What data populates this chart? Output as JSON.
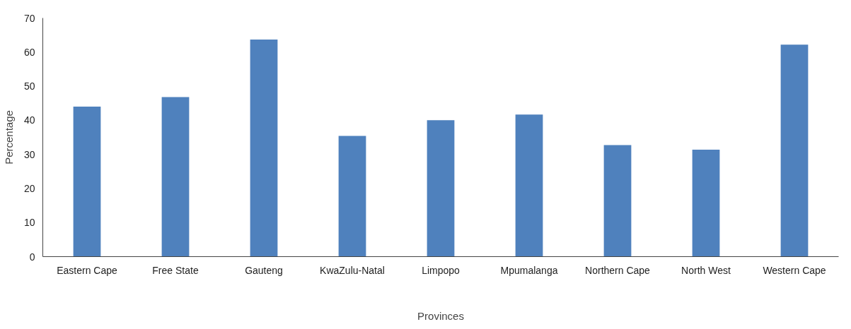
{
  "chart_data": {
    "type": "bar",
    "xlabel": "Provinces",
    "ylabel": "Percentage",
    "categories": [
      "Eastern Cape",
      "Free State",
      "Gauteng",
      "KwaZulu-Natal",
      "Limpopo",
      "Mpumalanga",
      "Northern Cape",
      "North West",
      "Western Cape"
    ],
    "values": [
      44,
      46.8,
      63.7,
      35.4,
      40,
      41.7,
      32.7,
      31.4,
      62.2
    ],
    "color": "#4f81bd",
    "ylim": [
      0,
      70
    ],
    "yticks": [
      0,
      10,
      20,
      30,
      40,
      50,
      60,
      70
    ],
    "grid": false
  }
}
